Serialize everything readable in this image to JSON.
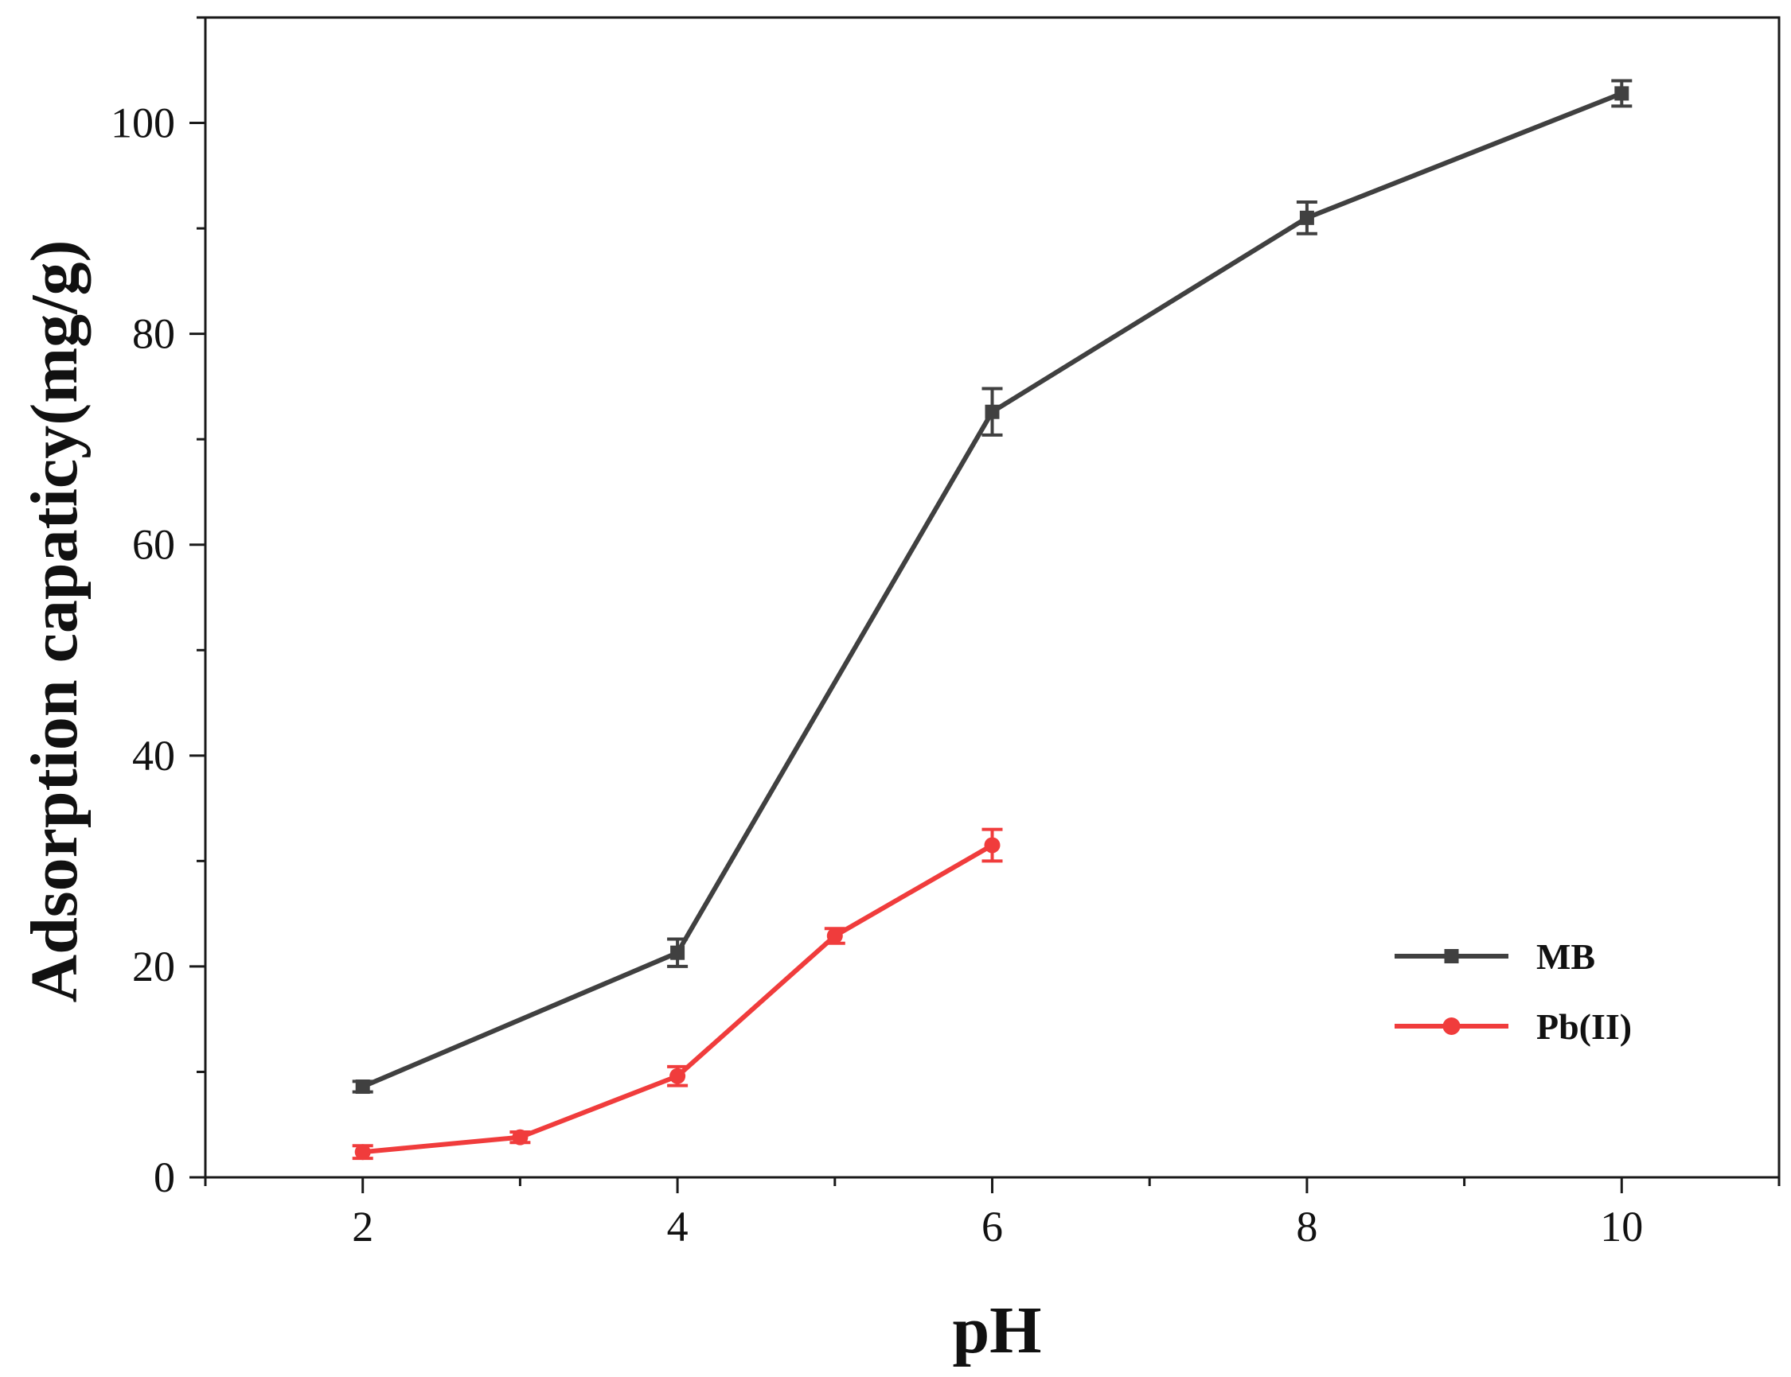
{
  "chart_data": {
    "type": "line",
    "xlabel": "pH",
    "ylabel": "Adsorption capaticy(mg/g)",
    "xlim": [
      1,
      11
    ],
    "ylim": [
      0,
      110
    ],
    "x_ticks": [
      2,
      4,
      6,
      8,
      10
    ],
    "y_ticks": [
      0,
      20,
      40,
      60,
      80,
      100
    ],
    "grid": false,
    "legend_position": "right",
    "series": [
      {
        "name": "MB",
        "color": "#404040",
        "marker": "square",
        "x": [
          2,
          4,
          6,
          8,
          10
        ],
        "y": [
          8.6,
          21.3,
          72.6,
          91.0,
          102.8
        ],
        "error": [
          0.5,
          1.3,
          2.2,
          1.5,
          1.2
        ]
      },
      {
        "name": "Pb(II)",
        "color": "#f03c3c",
        "marker": "circle",
        "x": [
          2,
          3,
          4,
          5,
          6
        ],
        "y": [
          2.4,
          3.8,
          9.6,
          22.9,
          31.5
        ],
        "error": [
          0.6,
          0.5,
          0.9,
          0.7,
          1.5
        ]
      }
    ]
  }
}
